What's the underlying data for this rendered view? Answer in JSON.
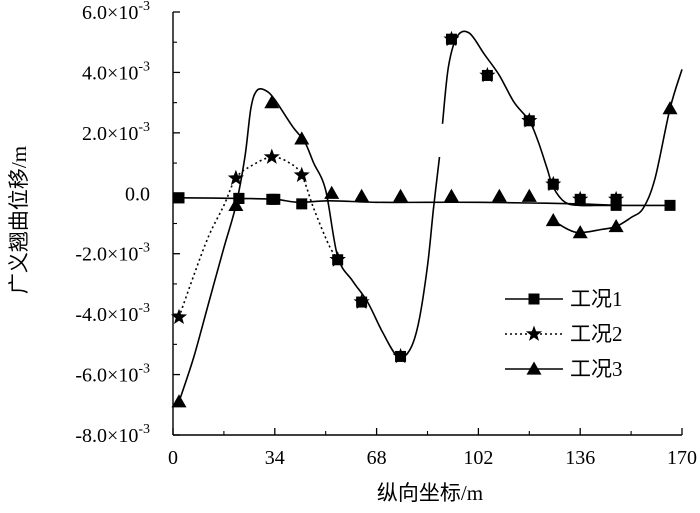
{
  "chart_data": {
    "type": "line",
    "title": "",
    "xlabel": "纵向坐标/m",
    "ylabel": "广义翘曲位移/m",
    "xlim": [
      0,
      170
    ],
    "ylim": [
      -0.008,
      0.006
    ],
    "x_ticks": [
      0,
      34,
      68,
      102,
      136,
      170
    ],
    "x_tick_labels": [
      "0",
      "34",
      "68",
      "102",
      "136",
      "170"
    ],
    "y_ticks": [
      0.006,
      0.004,
      0.002,
      0.0,
      -0.002,
      -0.004,
      -0.006,
      -0.008
    ],
    "y_tick_labels": [
      {
        "base": "6.0×10",
        "exp": "-3"
      },
      {
        "base": "4.0×10",
        "exp": "-3"
      },
      {
        "base": "2.0×10",
        "exp": "-3"
      },
      {
        "base": "0.0",
        "exp": ""
      },
      {
        "base": "-2.0×10",
        "exp": "-3"
      },
      {
        "base": "-4.0×10",
        "exp": "-3"
      },
      {
        "base": "-6.0×10",
        "exp": "-3"
      },
      {
        "base": "-8.0×10",
        "exp": "-3"
      }
    ],
    "grid": false,
    "legend_position": "right",
    "series": [
      {
        "name": "工况1",
        "line_style": "solid",
        "marker": "square",
        "curve": [
          [
            2,
            -0.00015
          ],
          [
            22,
            -0.00017
          ],
          [
            34,
            -0.0002
          ],
          [
            42,
            -0.0003
          ],
          [
            52,
            -0.00025
          ],
          [
            68,
            -0.0003
          ],
          [
            85,
            -0.0003
          ],
          [
            102,
            -0.0003
          ],
          [
            119,
            -0.00032
          ],
          [
            136,
            -0.00035
          ],
          [
            150,
            -0.0004
          ],
          [
            166,
            -0.0004
          ]
        ],
        "markers": [
          [
            2,
            -0.00015
          ],
          [
            22,
            -0.00017
          ],
          [
            33,
            -0.0002
          ],
          [
            43,
            -0.00035
          ],
          [
            166,
            -0.0004
          ]
        ]
      },
      {
        "name": "工况2",
        "line_style": "dotted",
        "marker": "star",
        "curve": [
          [
            2,
            -0.0041
          ],
          [
            7,
            -0.0027
          ],
          [
            12,
            -0.0014
          ],
          [
            17,
            -0.0004
          ],
          [
            21,
            0.0005
          ],
          [
            26,
            0.0009
          ],
          [
            33,
            0.0012
          ],
          [
            39,
            0.001
          ],
          [
            43,
            0.0006
          ],
          [
            47,
            -0.0005
          ],
          [
            52,
            -0.0017
          ],
          [
            55,
            -0.0022
          ]
        ],
        "markers": [
          [
            2,
            -0.0041
          ],
          [
            21,
            0.0005
          ],
          [
            33,
            0.0012
          ],
          [
            43,
            0.0006
          ],
          [
            55,
            -0.0022
          ]
        ]
      },
      {
        "name": "工况3",
        "line_style": "solid",
        "marker": "triangle",
        "segments": [
          [
            [
              2,
              -0.0069
            ],
            [
              7,
              -0.0054
            ],
            [
              12,
              -0.0036
            ],
            [
              17,
              -0.0018
            ],
            [
              21,
              -0.0004
            ],
            [
              24,
              0.0012
            ],
            [
              26,
              0.0028
            ],
            [
              28,
              0.0034
            ],
            [
              31,
              0.0034
            ],
            [
              34,
              0.0031
            ],
            [
              40,
              0.0022
            ],
            [
              44,
              0.0017
            ],
            [
              47,
              0.001
            ],
            [
              51,
              0.0001
            ],
            [
              55,
              -0.0021
            ],
            [
              60,
              -0.0029
            ],
            [
              65,
              -0.0036
            ],
            [
              70,
              -0.0046
            ],
            [
              75,
              -0.0054
            ],
            [
              79,
              -0.0052
            ],
            [
              82,
              -0.0043
            ],
            [
              85,
              -0.0024
            ],
            [
              87,
              -0.0005
            ],
            [
              89,
              0.0012
            ]
          ],
          [
            [
              90,
              0.0023
            ],
            [
              92,
              0.0042
            ],
            [
              95,
              0.0052
            ],
            [
              99,
              0.0053
            ],
            [
              104,
              0.0046
            ],
            [
              109,
              0.0039
            ],
            [
              114,
              0.003
            ],
            [
              119,
              0.0024
            ],
            [
              122,
              0.0017
            ],
            [
              125,
              0.0008
            ],
            [
              127,
              0.0002
            ],
            [
              131,
              -0.0003
            ],
            [
              136,
              -0.0004
            ],
            [
              143,
              -0.0004
            ],
            [
              150,
              -0.0004
            ]
          ],
          [
            [
              127,
              -0.0009
            ],
            [
              132,
              -0.0012
            ],
            [
              136,
              -0.0013
            ],
            [
              143,
              -0.0012
            ],
            [
              148,
              -0.0011
            ],
            [
              153,
              -0.0008
            ],
            [
              157,
              -0.0005
            ],
            [
              161,
              0.0005
            ],
            [
              166,
              0.0028
            ],
            [
              170,
              0.0041
            ]
          ]
        ],
        "markers": [
          [
            2,
            -0.0069
          ],
          [
            21,
            -0.0004
          ],
          [
            33,
            0.003
          ],
          [
            43,
            0.0018
          ],
          [
            53,
            0.0
          ],
          [
            63,
            -0.0001
          ],
          [
            76,
            -0.0001
          ],
          [
            93,
            -0.0001
          ],
          [
            109,
            -0.0001
          ],
          [
            119,
            -0.0001
          ],
          [
            127,
            -0.0009
          ],
          [
            136,
            -0.0013
          ],
          [
            148,
            -0.0011
          ],
          [
            166,
            0.0028
          ]
        ]
      }
    ],
    "overlay_markers": [
      {
        "marker": "square",
        "points": [
          [
            34,
            -0.0002
          ],
          [
            22,
            -0.00017
          ],
          [
            2,
            -0.00015
          ],
          [
            148,
            -0.0004
          ]
        ]
      },
      {
        "marker": "star",
        "points": [
          [
            93,
            0.0051
          ],
          [
            105,
            0.0039
          ],
          [
            119,
            0.0024
          ],
          [
            127,
            0.0003
          ],
          [
            136,
            -0.0002
          ],
          [
            148,
            -0.0002
          ]
        ]
      },
      {
        "marker": "star",
        "points": [
          [
            55,
            -0.0022
          ],
          [
            63,
            -0.0036
          ],
          [
            76,
            -0.0054
          ]
        ]
      },
      {
        "marker": "square",
        "points": [
          [
            55,
            -0.0022
          ],
          [
            63,
            -0.0036
          ],
          [
            76,
            -0.0054
          ],
          [
            93,
            0.0051
          ],
          [
            105,
            0.0039
          ],
          [
            119,
            0.0024
          ],
          [
            127,
            0.0003
          ],
          [
            136,
            -0.0002
          ],
          [
            148,
            -0.0002
          ]
        ]
      }
    ]
  }
}
